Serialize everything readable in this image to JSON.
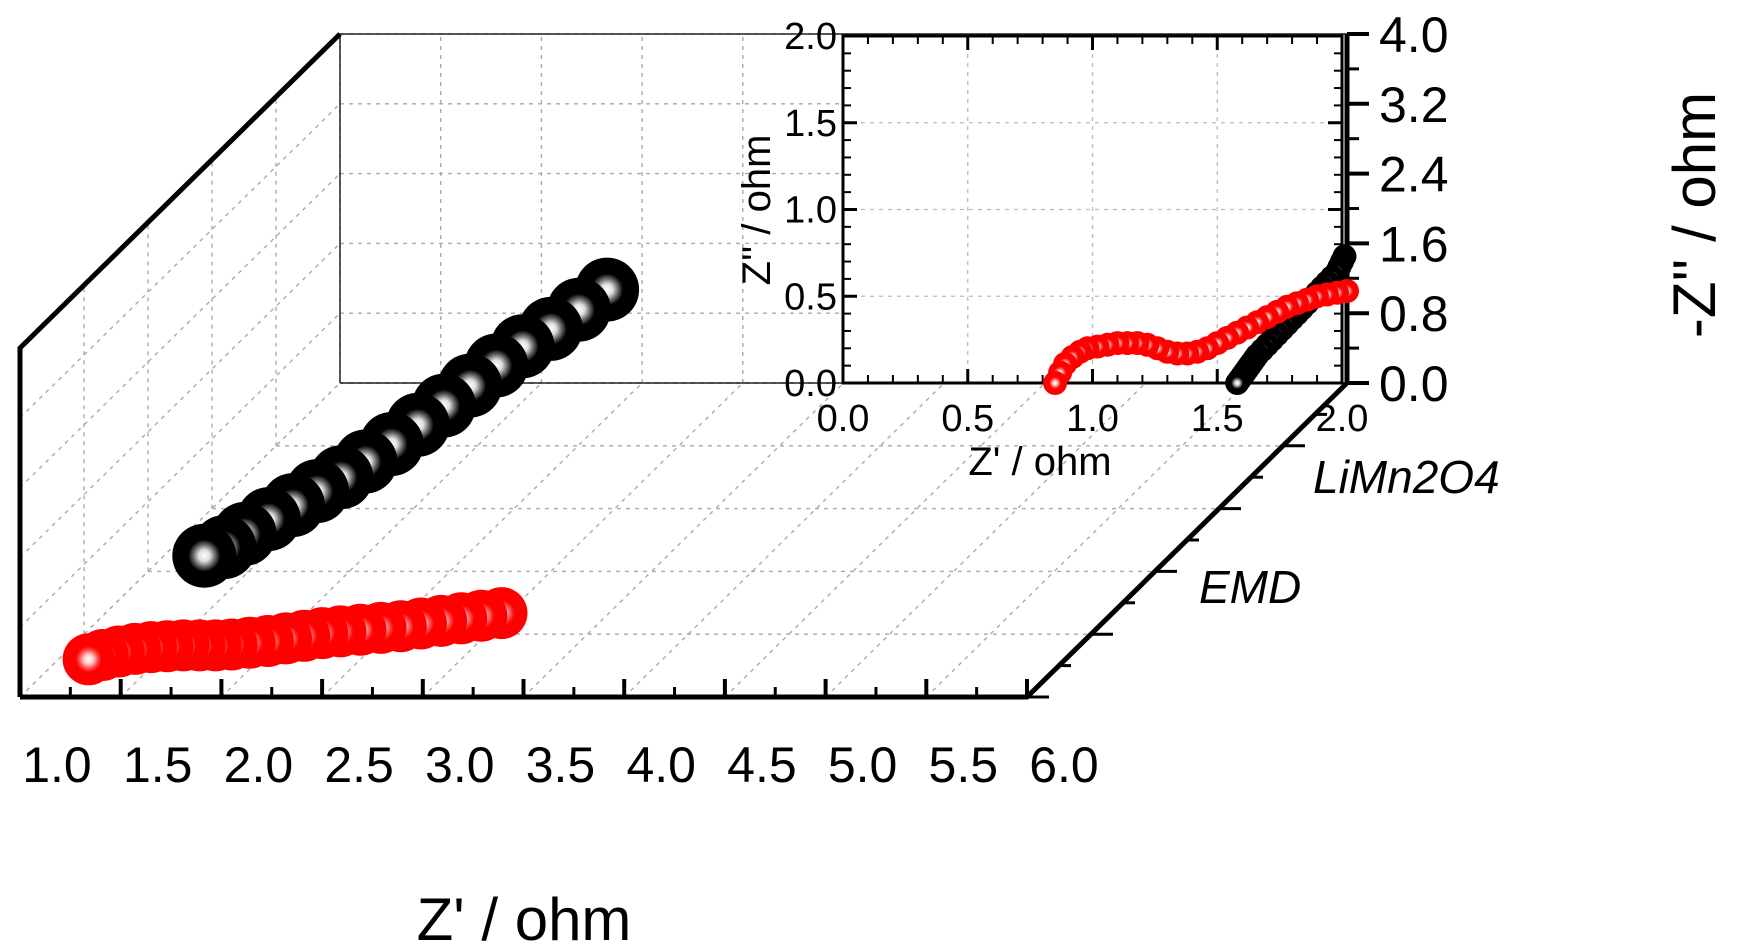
{
  "chart_data": [
    {
      "type": "scatter",
      "view": "3d-waterfall",
      "xlabel": "Z' / ohm",
      "zlabel": "-Z'' / ohm",
      "xlim": [
        1.0,
        6.0
      ],
      "xticks": [
        "1.0",
        "1.5",
        "2.0",
        "2.5",
        "3.0",
        "3.5",
        "4.0",
        "4.5",
        "5.0",
        "5.5",
        "6.0"
      ],
      "zlim": [
        0.0,
        4.0
      ],
      "zticks": [
        "0.0",
        "0.8",
        "1.6",
        "2.4",
        "3.2",
        "4.0"
      ],
      "grid": true,
      "categories": [
        "EMD",
        "LiMn2O4"
      ],
      "series": [
        {
          "category": "EMD",
          "color": "#ff0000",
          "x": [
            1.15,
            1.22,
            1.3,
            1.38,
            1.46,
            1.54,
            1.62,
            1.7,
            1.78,
            1.86,
            1.95,
            2.04,
            2.13,
            2.22,
            2.31,
            2.4,
            2.5,
            2.6,
            2.7,
            2.8,
            2.9,
            3.0,
            3.1,
            3.2
          ],
          "y": [
            0.0,
            0.05,
            0.09,
            0.12,
            0.14,
            0.15,
            0.16,
            0.16,
            0.16,
            0.17,
            0.19,
            0.21,
            0.24,
            0.27,
            0.3,
            0.32,
            0.34,
            0.36,
            0.38,
            0.41,
            0.44,
            0.47,
            0.5,
            0.53
          ]
        },
        {
          "category": "LiMn2O4",
          "color": "#000000",
          "x": [
            1.2,
            1.3,
            1.4,
            1.52,
            1.64,
            1.76,
            1.88,
            2.0,
            2.13,
            2.26,
            2.39,
            2.52,
            2.65,
            2.78,
            2.92,
            3.06,
            3.2
          ],
          "y": [
            0.0,
            0.1,
            0.25,
            0.42,
            0.58,
            0.74,
            0.9,
            1.08,
            1.28,
            1.5,
            1.72,
            1.95,
            2.18,
            2.4,
            2.6,
            2.82,
            3.05
          ]
        }
      ]
    },
    {
      "type": "scatter",
      "view": "inset",
      "xlabel": "Z' / ohm",
      "ylabel": "Z'' / ohm",
      "xlim": [
        0.0,
        2.0
      ],
      "ylim": [
        0.0,
        2.0
      ],
      "xticks": [
        "0.0",
        "0.5",
        "1.0",
        "1.5",
        "2.0"
      ],
      "yticks": [
        "0.0",
        "0.5",
        "1.0",
        "1.5",
        "2.0"
      ],
      "grid": true,
      "series": [
        {
          "category": "LiMn2O4",
          "color": "#000000",
          "x": [
            1.58,
            1.59,
            1.6,
            1.61,
            1.62,
            1.63,
            1.64,
            1.65,
            1.66,
            1.68,
            1.7,
            1.72,
            1.74,
            1.76,
            1.78,
            1.8,
            1.82,
            1.84,
            1.86,
            1.88,
            1.9,
            1.92,
            1.94,
            1.96,
            1.98,
            1.99,
            2.0,
            2.01
          ],
          "y": [
            0.0,
            0.02,
            0.04,
            0.06,
            0.08,
            0.1,
            0.12,
            0.14,
            0.16,
            0.19,
            0.22,
            0.25,
            0.28,
            0.31,
            0.34,
            0.37,
            0.4,
            0.43,
            0.46,
            0.49,
            0.52,
            0.55,
            0.58,
            0.61,
            0.64,
            0.67,
            0.7,
            0.73
          ]
        },
        {
          "category": "EMD",
          "color": "#ff0000",
          "x": [
            0.85,
            0.87,
            0.89,
            0.92,
            0.95,
            0.98,
            1.02,
            1.06,
            1.1,
            1.14,
            1.18,
            1.22,
            1.26,
            1.3,
            1.34,
            1.38,
            1.42,
            1.46,
            1.5,
            1.54,
            1.58,
            1.62,
            1.66,
            1.7,
            1.74,
            1.78,
            1.82,
            1.86,
            1.9,
            1.94,
            1.98,
            2.02
          ],
          "y": [
            0.0,
            0.06,
            0.11,
            0.15,
            0.18,
            0.2,
            0.21,
            0.22,
            0.23,
            0.23,
            0.23,
            0.22,
            0.2,
            0.18,
            0.17,
            0.17,
            0.18,
            0.2,
            0.23,
            0.26,
            0.29,
            0.32,
            0.35,
            0.38,
            0.41,
            0.44,
            0.46,
            0.48,
            0.5,
            0.51,
            0.52,
            0.53
          ]
        }
      ]
    }
  ]
}
